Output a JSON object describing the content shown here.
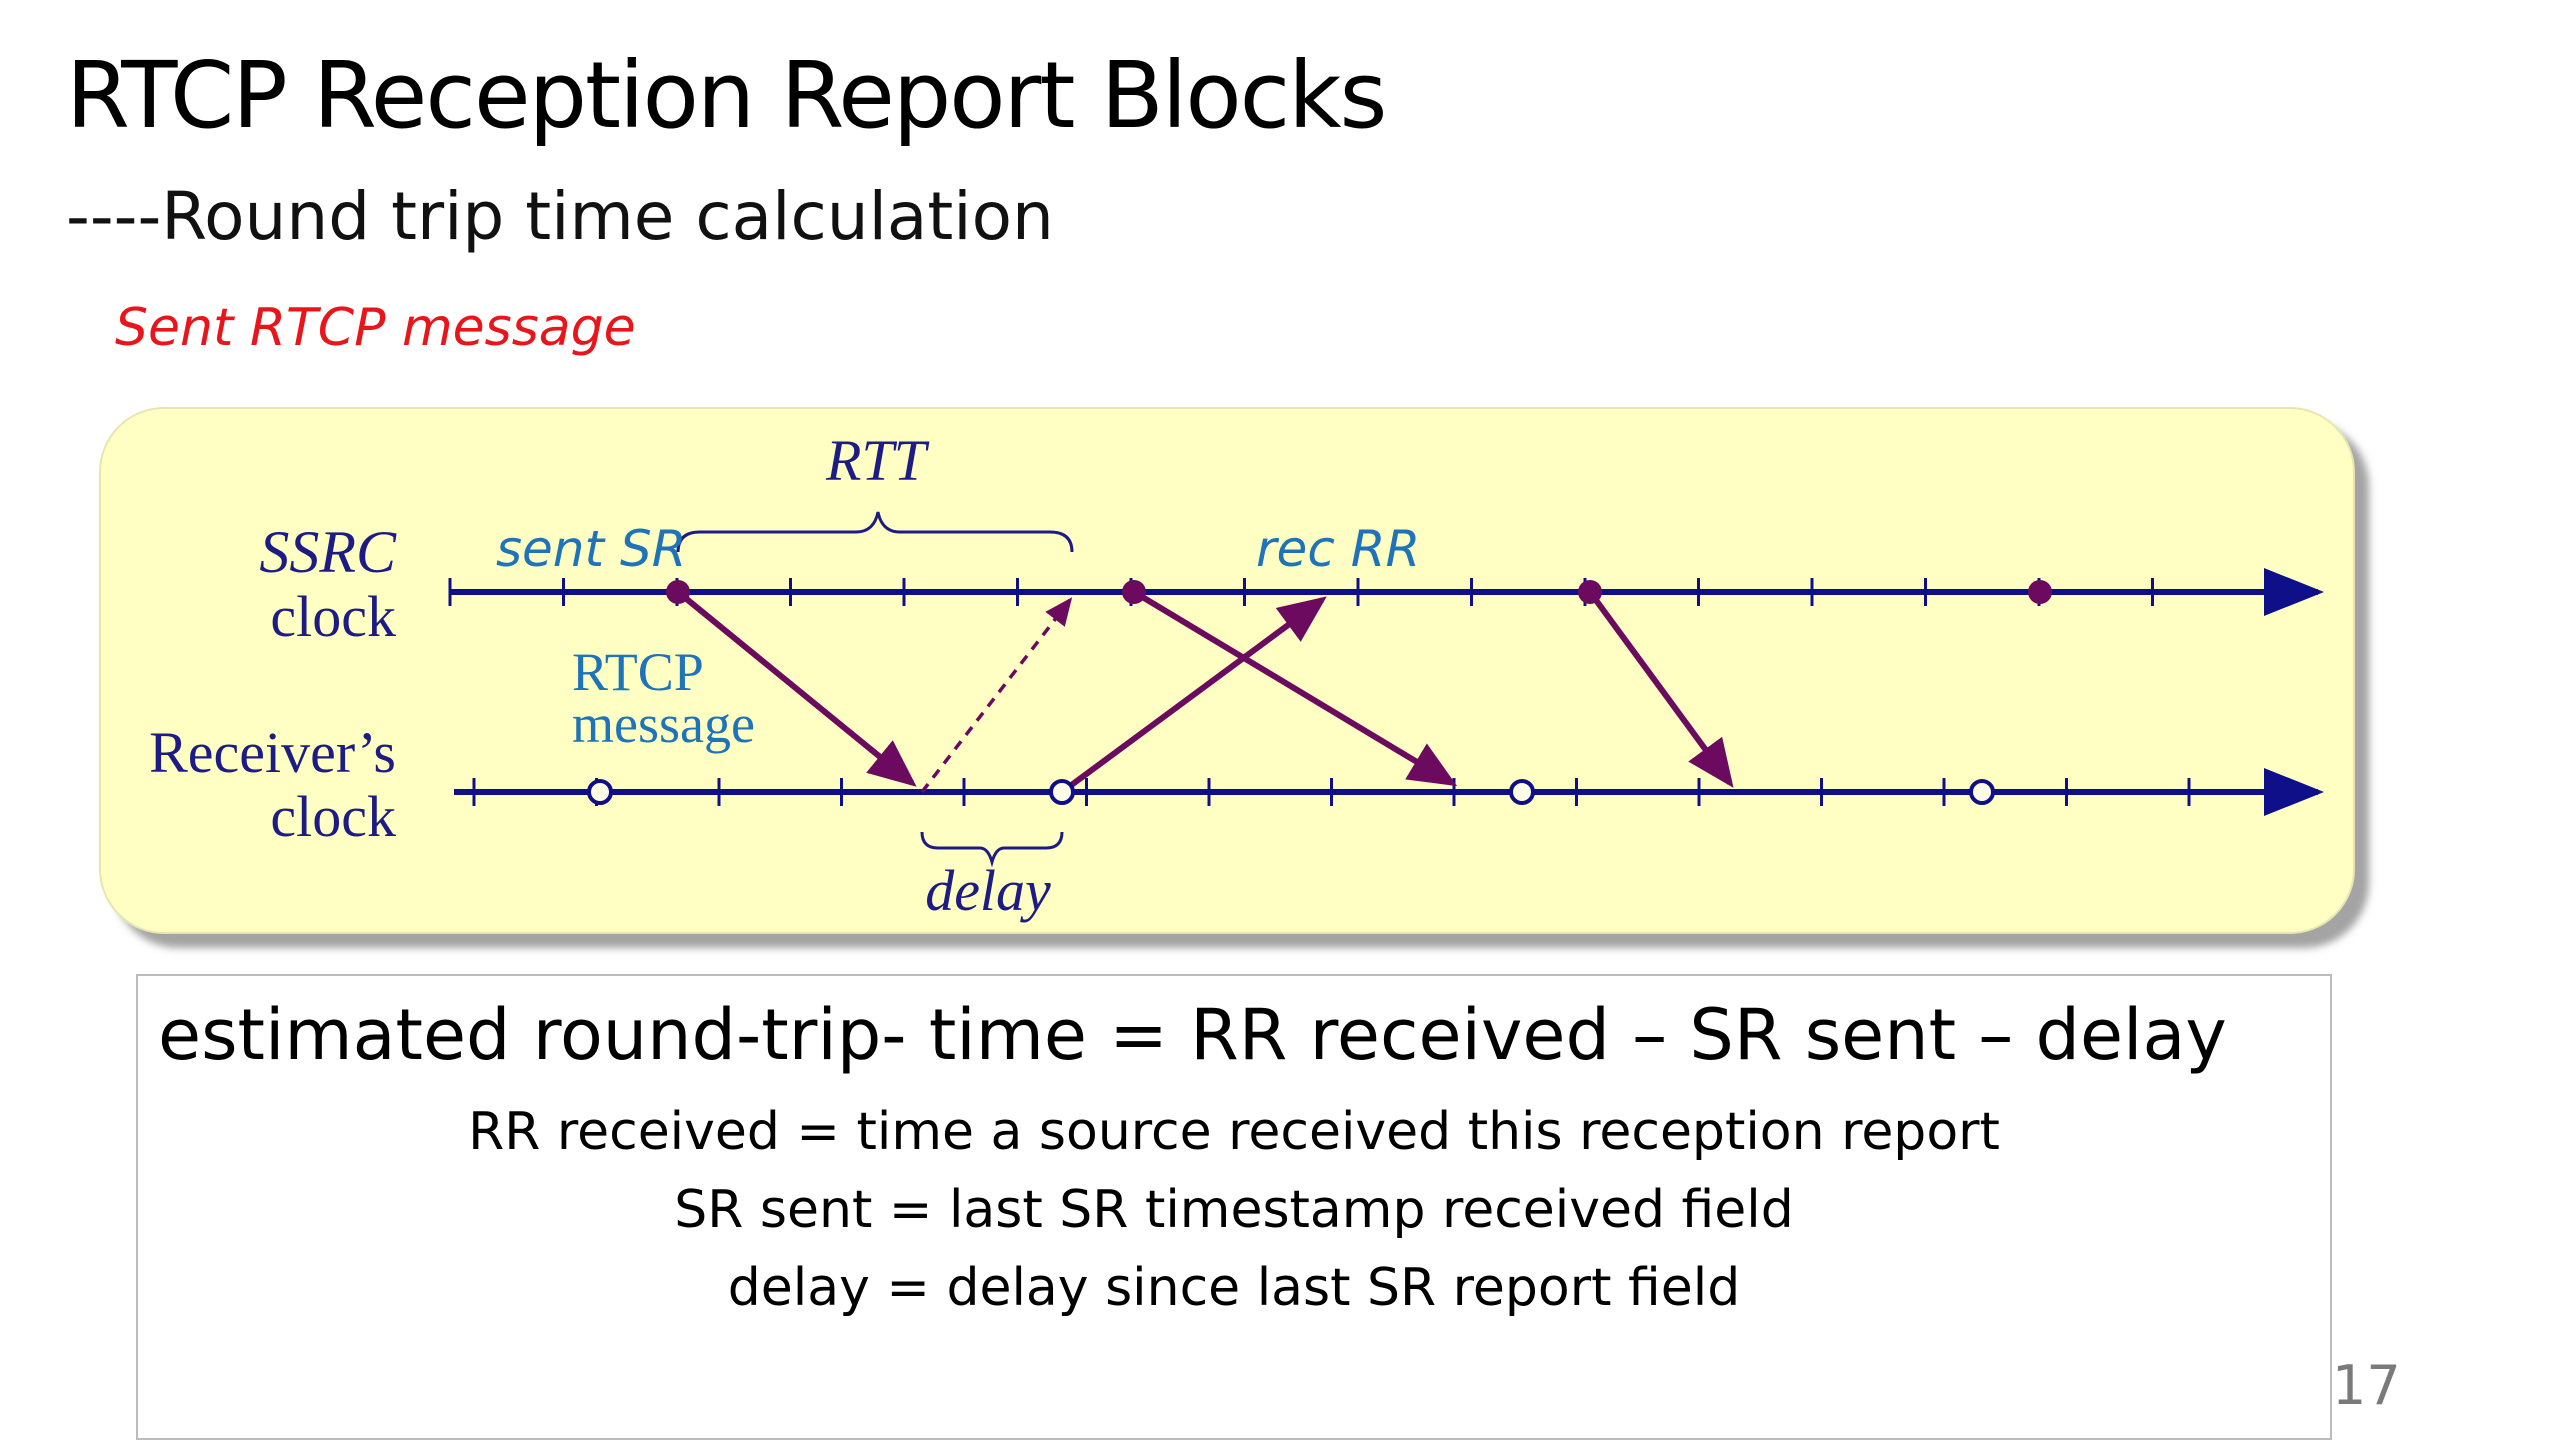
{
  "slide": {
    "title": "RTCP Reception Report Blocks",
    "subtitle": "----Round trip time calculation",
    "note": "Sent RTCP message",
    "page_number": "17"
  },
  "diagram": {
    "rtt_label": "RTT",
    "ssrc_label_line1": "SSRC",
    "ssrc_label_line2": "clock",
    "receiver_label_line1": "Receiver’s",
    "receiver_label_line2": "clock",
    "sent_sr_label": "sent SR",
    "rec_rr_label": "rec RR",
    "rtcp_message_line1": "RTCP",
    "rtcp_message_line2": "message",
    "delay_label": "delay",
    "colors": {
      "panel": "#ffffc4",
      "timeline": "#0f0f8a",
      "arrow": "#6b0a5e",
      "label_navy": "#1c1c84",
      "label_blue": "#1f73b8"
    }
  },
  "formula": {
    "main": "estimated round-trip- time = RR received – SR sent – delay",
    "def_rr": "RR received = time a source received this reception report",
    "def_sr": "SR sent = last SR timestamp received field",
    "def_delay": "delay = delay since last SR report field"
  }
}
